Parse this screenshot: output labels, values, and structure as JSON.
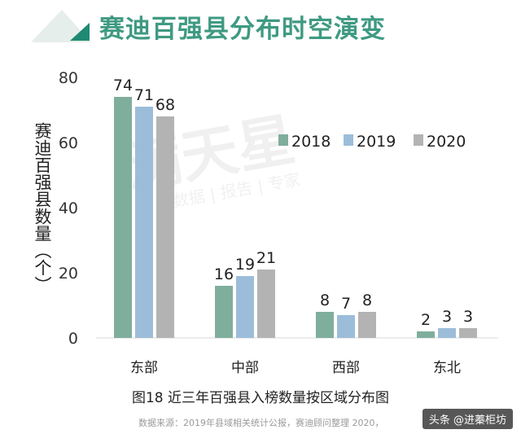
{
  "header": {
    "title": "赛迪百强县分布时空演变"
  },
  "colors": {
    "accent": "#3f9a82",
    "series": [
      "#7fae9d",
      "#9cbdd9",
      "#b3b3b3"
    ]
  },
  "chart_data": {
    "type": "bar",
    "title": "图18 近三年百强县入榜数量按区域分布图",
    "xlabel": "",
    "ylabel": "赛迪百强县数量（个）",
    "categories": [
      "东部",
      "中部",
      "西部",
      "东北"
    ],
    "series": [
      {
        "name": "2018",
        "values": [
          74,
          16,
          8,
          2
        ]
      },
      {
        "name": "2019",
        "values": [
          71,
          19,
          7,
          3
        ]
      },
      {
        "name": "2020",
        "values": [
          68,
          21,
          8,
          3
        ]
      }
    ],
    "ylim": [
      0,
      80
    ],
    "yticks": [
      0,
      20,
      40,
      60,
      80
    ],
    "grid": false,
    "legend": "top-right",
    "data_labels": true
  },
  "watermark": {
    "big": "满天星",
    "small": "数据 | 报告 | 专家"
  },
  "source_note": "数据来源：2019年县域相关统计公报，赛迪顾问整理  2020，",
  "badge": "头条 @进蓁柜坊"
}
